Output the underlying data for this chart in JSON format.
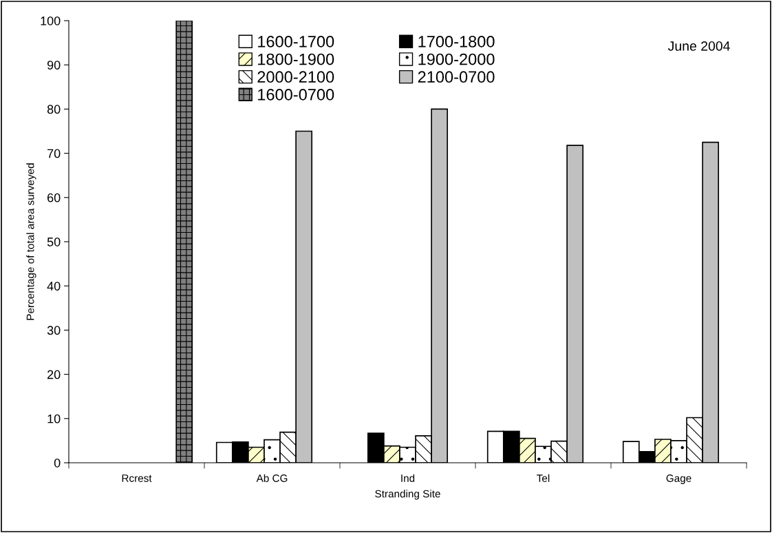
{
  "chart_data": {
    "type": "bar",
    "xlabel": "Stranding Site",
    "ylabel": "Percentage of total area surveyed",
    "categories": [
      "Rcrest",
      "Ab CG",
      "Ind",
      "Tel",
      "Gage"
    ],
    "series": [
      {
        "name": "1600-1700",
        "color": "#ffffff",
        "values": [
          null,
          4.6,
          null,
          7.1,
          4.8
        ]
      },
      {
        "name": "1700-1800",
        "color": "#000000",
        "values": [
          null,
          4.7,
          6.7,
          7.1,
          2.5
        ]
      },
      {
        "name": "1800-1900",
        "color": "#ffffcc",
        "values": [
          null,
          3.5,
          3.8,
          5.5,
          5.3
        ]
      },
      {
        "name": "1900-2000",
        "color": "#ffffff",
        "values": [
          null,
          5.2,
          3.5,
          3.7,
          5.0
        ]
      },
      {
        "name": "2000-2100",
        "color": "#ffffff",
        "values": [
          null,
          6.9,
          6.1,
          4.9,
          10.2
        ]
      },
      {
        "name": "2100-0700",
        "color": "#c0c0c0",
        "values": [
          null,
          75,
          80,
          71.8,
          72.5
        ]
      },
      {
        "name": "1600-0700",
        "color": "#808080",
        "values": [
          100,
          null,
          null,
          null,
          null
        ]
      }
    ],
    "ylim": [
      0,
      100
    ],
    "yticks": [
      0,
      10,
      20,
      30,
      40,
      50,
      60,
      70,
      80,
      90,
      100
    ],
    "annotations": [
      "June 2004"
    ],
    "legend": "top",
    "grid": false
  }
}
